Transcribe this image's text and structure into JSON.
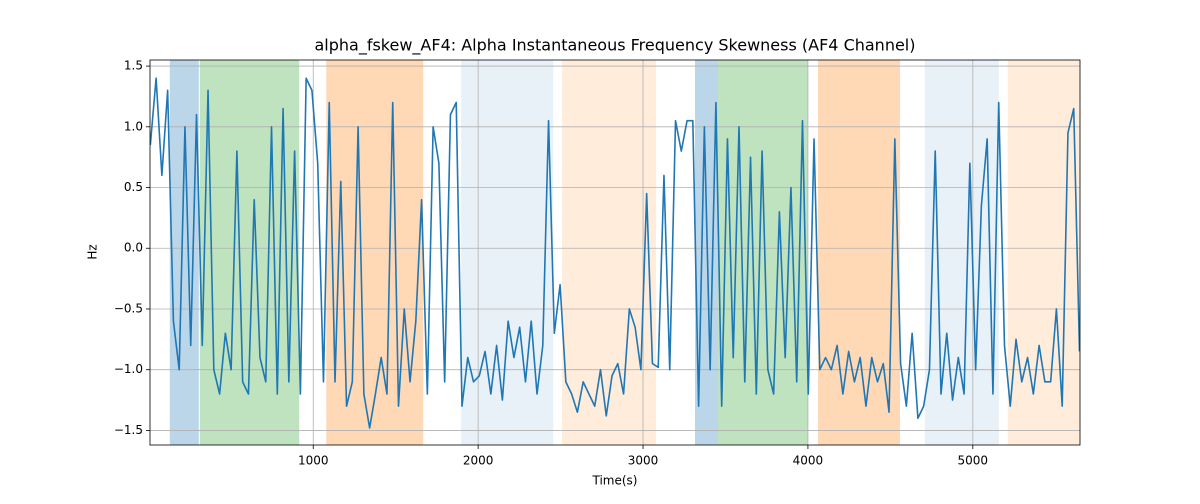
{
  "chart_data": {
    "type": "line",
    "title": "alpha_fskew_AF4: Alpha Instantaneous Frequency Skewness (AF4 Channel)",
    "xlabel": "Time(s)",
    "ylabel": "Hz",
    "color": "#1f77b4",
    "x": [
      12,
      47,
      82,
      117,
      152,
      187,
      222,
      257,
      292,
      327,
      362,
      397,
      432,
      467,
      502,
      537,
      572,
      607,
      642,
      677,
      712,
      747,
      782,
      817,
      852,
      887,
      922,
      957,
      992,
      1027,
      1062,
      1097,
      1132,
      1167,
      1202,
      1237,
      1272,
      1307,
      1342,
      1377,
      1412,
      1447,
      1482,
      1517,
      1552,
      1587,
      1622,
      1657,
      1692,
      1727,
      1762,
      1797,
      1832,
      1867,
      1902,
      1937,
      1972,
      2007,
      2042,
      2077,
      2112,
      2147,
      2182,
      2217,
      2252,
      2287,
      2322,
      2357,
      2392,
      2427,
      2462,
      2497,
      2532,
      2567,
      2602,
      2637,
      2672,
      2707,
      2742,
      2777,
      2812,
      2847,
      2882,
      2917,
      2952,
      2987,
      3022,
      3057,
      3092,
      3127,
      3162,
      3197,
      3232,
      3267,
      3302,
      3337,
      3372,
      3407,
      3442,
      3477,
      3512,
      3547,
      3582,
      3617,
      3652,
      3687,
      3722,
      3757,
      3792,
      3827,
      3862,
      3897,
      3932,
      3967,
      4002,
      4037,
      4072,
      4107,
      4142,
      4177,
      4212,
      4247,
      4282,
      4317,
      4352,
      4387,
      4422,
      4457,
      4492,
      4527,
      4562,
      4597,
      4632,
      4667,
      4702,
      4737,
      4772,
      4807,
      4842,
      4877,
      4912,
      4947,
      4982,
      5017,
      5052,
      5087,
      5122,
      5157,
      5192,
      5227,
      5262,
      5297,
      5332,
      5367,
      5402,
      5437,
      5472,
      5507,
      5542,
      5577,
      5612,
      5647
    ],
    "values": [
      0.85,
      1.4,
      0.6,
      1.3,
      -0.6,
      -1.0,
      1.0,
      -0.8,
      1.1,
      -0.8,
      1.3,
      -1.0,
      -1.2,
      -0.7,
      -1.0,
      0.8,
      -1.1,
      -1.2,
      0.4,
      -0.9,
      -1.1,
      1.0,
      -1.2,
      1.15,
      -1.1,
      0.8,
      -1.2,
      1.4,
      1.3,
      0.7,
      -1.1,
      1.2,
      -1.1,
      0.55,
      -1.3,
      -1.1,
      1.0,
      -1.2,
      -1.48,
      -1.2,
      -0.9,
      -1.2,
      1.2,
      -1.3,
      -0.5,
      -1.1,
      -0.6,
      0.4,
      -1.2,
      1.0,
      0.7,
      -1.1,
      1.1,
      1.2,
      -1.3,
      -0.9,
      -1.1,
      -1.05,
      -0.85,
      -1.2,
      -0.8,
      -1.25,
      -0.6,
      -0.9,
      -0.65,
      -1.1,
      -0.6,
      -1.2,
      -0.8,
      1.05,
      -0.7,
      -0.3,
      -1.1,
      -1.2,
      -1.35,
      -1.1,
      -1.2,
      -1.3,
      -1.0,
      -1.38,
      -1.05,
      -0.95,
      -1.2,
      -0.5,
      -0.65,
      -1.0,
      0.45,
      -0.95,
      -0.98,
      0.6,
      -1.0,
      1.05,
      0.8,
      1.05,
      1.05,
      -1.3,
      1.0,
      -1.0,
      1.2,
      -1.3,
      0.9,
      -0.9,
      1.0,
      -1.1,
      0.75,
      -1.2,
      0.8,
      -1.0,
      -1.2,
      0.3,
      -0.9,
      0.5,
      -1.1,
      1.05,
      -1.2,
      0.9,
      -1.0,
      -0.9,
      -1.0,
      -0.8,
      -1.2,
      -0.85,
      -1.1,
      -0.9,
      -1.3,
      -0.9,
      -1.1,
      -0.95,
      -1.35,
      0.9,
      -0.95,
      -1.3,
      -0.7,
      -1.4,
      -1.3,
      -1.0,
      0.8,
      -1.2,
      -0.7,
      -1.25,
      -0.9,
      -1.2,
      0.7,
      -1.0,
      0.35,
      0.9,
      -1.2,
      1.2,
      -0.8,
      -1.3,
      -0.75,
      -1.1,
      -0.9,
      -1.2,
      -0.8,
      -1.1,
      -1.1,
      -0.5,
      -1.3,
      0.95,
      1.15,
      -0.85
    ],
    "spans": [
      {
        "x0": 130,
        "x1": 306,
        "color": "#1f77b4",
        "alpha": 0.3
      },
      {
        "x0": 312,
        "x1": 915,
        "color": "#2ca02c",
        "alpha": 0.3
      },
      {
        "x0": 1079,
        "x1": 1667,
        "color": "#ff7f0e",
        "alpha": 0.3
      },
      {
        "x0": 1897,
        "x1": 2455,
        "color": "#1f77b4",
        "alpha": 0.1
      },
      {
        "x0": 2509,
        "x1": 3079,
        "color": "#ff7f0e",
        "alpha": 0.15
      },
      {
        "x0": 3315,
        "x1": 3455,
        "color": "#1f77b4",
        "alpha": 0.3
      },
      {
        "x0": 3455,
        "x1": 4000,
        "color": "#2ca02c",
        "alpha": 0.3
      },
      {
        "x0": 4061,
        "x1": 4558,
        "color": "#ff7f0e",
        "alpha": 0.3
      },
      {
        "x0": 4709,
        "x1": 5158,
        "color": "#1f77b4",
        "alpha": 0.1
      },
      {
        "x0": 5212,
        "x1": 5650,
        "color": "#ff7f0e",
        "alpha": 0.15
      }
    ],
    "xlim": [
      10,
      5650
    ],
    "ylim": [
      -1.62,
      1.55
    ],
    "xticks": [
      1000,
      2000,
      3000,
      4000,
      5000
    ],
    "yticks": [
      {
        "value": -1.5,
        "label": "−1.5"
      },
      {
        "value": -1,
        "label": "−1.0"
      },
      {
        "value": -0.5,
        "label": "−0.5"
      },
      {
        "value": 0,
        "label": "0.0"
      },
      0.5,
      {
        "value": 1,
        "label": "1.0"
      },
      1.5
    ],
    "grid": true
  }
}
